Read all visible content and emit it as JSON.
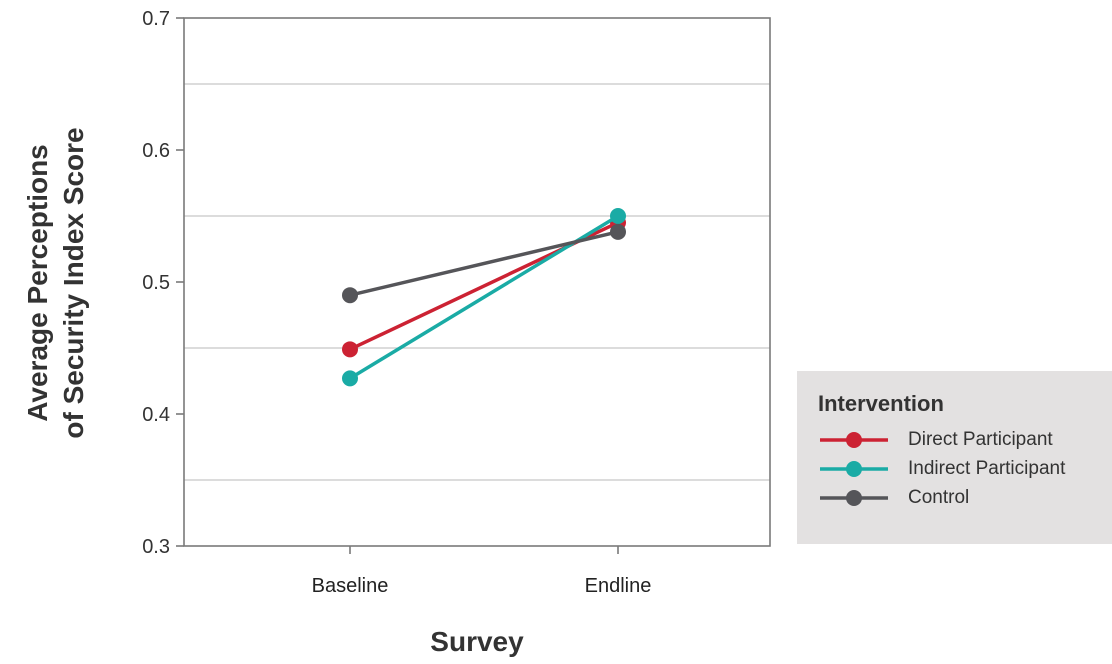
{
  "chart_data": {
    "type": "line",
    "title": "",
    "xlabel": "Survey",
    "ylabel_lines": [
      "Average Perceptions",
      "of Security Index Score"
    ],
    "categories": [
      "Baseline",
      "Endline"
    ],
    "ylim": [
      0.3,
      0.7
    ],
    "y_ticks": [
      0.3,
      0.4,
      0.5,
      0.6,
      0.7
    ],
    "y_tick_labels": [
      "0.3",
      "0.4",
      "0.5",
      "0.6",
      "0.7"
    ],
    "gridlines": [
      0.35,
      0.45,
      0.55,
      0.65
    ],
    "grid": true,
    "legend_title": "Intervention",
    "legend_position": "right",
    "series": [
      {
        "name": "Direct Participant",
        "values": [
          0.449,
          0.545
        ],
        "color": "#cc2233"
      },
      {
        "name": "Indirect Participant",
        "values": [
          0.427,
          0.55
        ],
        "color": "#1aaba5"
      },
      {
        "name": "Control",
        "values": [
          0.49,
          0.538
        ],
        "color": "#555559"
      }
    ]
  }
}
